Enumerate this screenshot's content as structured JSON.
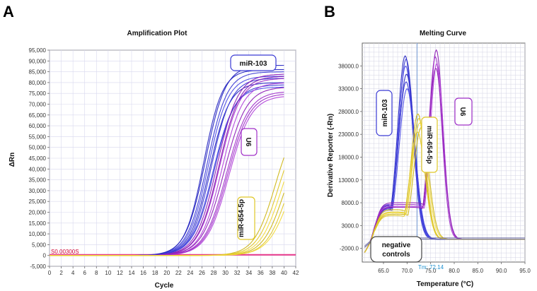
{
  "chart_data": [
    {
      "panel": "A",
      "type": "line",
      "title": "Amplification Plot",
      "xlabel": "Cycle",
      "ylabel": "ΔRn",
      "xlim": [
        0,
        42
      ],
      "ylim": [
        -5000,
        95000
      ],
      "xticks": [
        0,
        2,
        4,
        6,
        8,
        10,
        12,
        14,
        16,
        18,
        20,
        22,
        24,
        26,
        28,
        30,
        32,
        34,
        36,
        38,
        40,
        42
      ],
      "yticks": [
        -5000,
        0,
        5000,
        10000,
        15000,
        20000,
        25000,
        30000,
        35000,
        40000,
        45000,
        50000,
        55000,
        60000,
        65000,
        70000,
        75000,
        80000,
        85000,
        90000,
        95000
      ],
      "ytick_labels": [
        "-5,000",
        "0",
        "5,000",
        "10,000",
        "15,000",
        "20,000",
        "25,000",
        "30,000",
        "35,000",
        "40,000",
        "45,000",
        "50,000",
        "55,000",
        "60,000",
        "65,000",
        "70,000",
        "75,000",
        "80,000",
        "85,000",
        "90,000",
        "95,000"
      ],
      "threshold": {
        "label": "S0.00300S",
        "value": 300
      },
      "grid": true,
      "series": [
        {
          "name": "miR-103",
          "color": "#3a3ad4",
          "model": "sigmoid",
          "curves": [
            {
              "plateau": 88000,
              "midpoint": 26.6,
              "slope": 1.7
            },
            {
              "plateau": 85000,
              "midpoint": 26.9,
              "slope": 1.7
            },
            {
              "plateau": 83000,
              "midpoint": 27.1,
              "slope": 1.7
            },
            {
              "plateau": 80000,
              "midpoint": 27.3,
              "slope": 1.7
            },
            {
              "plateau": 82000,
              "midpoint": 27.6,
              "slope": 1.7
            },
            {
              "plateau": 78000,
              "midpoint": 27.9,
              "slope": 1.8
            },
            {
              "plateau": 86000,
              "midpoint": 26.3,
              "slope": 1.6
            },
            {
              "plateau": 79000,
              "midpoint": 28.1,
              "slope": 1.8
            }
          ]
        },
        {
          "name": "U6",
          "color": "#a030c8",
          "model": "sigmoid",
          "curves": [
            {
              "plateau": 84000,
              "midpoint": 28.6,
              "slope": 1.8
            },
            {
              "plateau": 82000,
              "midpoint": 29.0,
              "slope": 1.8
            },
            {
              "plateau": 80000,
              "midpoint": 29.4,
              "slope": 1.8
            },
            {
              "plateau": 78000,
              "midpoint": 29.8,
              "slope": 1.9
            },
            {
              "plateau": 76000,
              "midpoint": 30.2,
              "slope": 1.9
            },
            {
              "plateau": 74000,
              "midpoint": 30.6,
              "slope": 1.9
            },
            {
              "plateau": 83000,
              "midpoint": 28.9,
              "slope": 1.8
            },
            {
              "plateau": 75000,
              "midpoint": 30.4,
              "slope": 1.9
            }
          ]
        },
        {
          "name": "miR-654-5p",
          "color": "#e0c828",
          "model": "sigmoid",
          "curves": [
            {
              "plateau": 65000,
              "midpoint": 38.5,
              "slope": 1.8
            },
            {
              "plateau": 62000,
              "midpoint": 39.0,
              "slope": 1.8
            },
            {
              "plateau": 60000,
              "midpoint": 39.5,
              "slope": 1.8
            },
            {
              "plateau": 58000,
              "midpoint": 40.0,
              "slope": 1.8
            },
            {
              "plateau": 56000,
              "midpoint": 40.5,
              "slope": 1.8
            },
            {
              "plateau": 55000,
              "midpoint": 41.0,
              "slope": 1.9
            }
          ]
        }
      ],
      "annotations": [
        "miR-103",
        "U6",
        "miR-654-5p"
      ]
    },
    {
      "panel": "B",
      "type": "line",
      "title": "Melting Curve",
      "xlabel": "Temperature (°C)",
      "ylabel": "Derivative Reporter (-Rn)",
      "xlim": [
        60.5,
        95.0
      ],
      "ylim": [
        -5000,
        43000
      ],
      "xticks": [
        65.0,
        70.0,
        75.0,
        80.0,
        85.0,
        90.0,
        95.0
      ],
      "xtick_labels": [
        "65.0",
        "70.0",
        "75.0",
        "80.0",
        "85.0",
        "90.0",
        "95.0"
      ],
      "yticks": [
        -2000,
        3000,
        8000,
        13000,
        18000,
        23000,
        28000,
        33000,
        38000
      ],
      "ytick_labels": [
        "-2000.0",
        "3000.0",
        "8000.0",
        "13000.0",
        "18000.0",
        "23000.0",
        "28000.0",
        "33000.0",
        "38000.0"
      ],
      "tm_label": "Tm: 72.14",
      "tm_value": 72.14,
      "grid": true,
      "series": [
        {
          "name": "miR-103",
          "color": "#3a3ad4",
          "model": "gaussian",
          "curves": [
            {
              "peak": 40200,
              "center": 69.6,
              "sigma": 1.6,
              "shoulder": 7500
            },
            {
              "peak": 39500,
              "center": 69.8,
              "sigma": 1.6,
              "shoulder": 7200
            },
            {
              "peak": 38000,
              "center": 69.7,
              "sigma": 1.6,
              "shoulder": 7800
            },
            {
              "peak": 36200,
              "center": 69.9,
              "sigma": 1.7,
              "shoulder": 7000
            },
            {
              "peak": 34500,
              "center": 69.8,
              "sigma": 1.7,
              "shoulder": 6800
            },
            {
              "peak": 33000,
              "center": 70.0,
              "sigma": 1.7,
              "shoulder": 6500
            }
          ]
        },
        {
          "name": "U6",
          "color": "#a030c8",
          "model": "gaussian",
          "curves": [
            {
              "peak": 41500,
              "center": 76.2,
              "sigma": 1.4,
              "shoulder": 8000
            },
            {
              "peak": 40000,
              "center": 76.0,
              "sigma": 1.4,
              "shoulder": 7600
            },
            {
              "peak": 38500,
              "center": 76.3,
              "sigma": 1.4,
              "shoulder": 7200
            },
            {
              "peak": 37500,
              "center": 76.1,
              "sigma": 1.5,
              "shoulder": 7000
            }
          ]
        },
        {
          "name": "miR-654-5p",
          "color": "#e0c828",
          "model": "gaussian",
          "curves": [
            {
              "peak": 27500,
              "center": 72.3,
              "sigma": 1.5,
              "shoulder": 6500
            },
            {
              "peak": 26500,
              "center": 72.5,
              "sigma": 1.5,
              "shoulder": 6000
            },
            {
              "peak": 25500,
              "center": 72.7,
              "sigma": 1.6,
              "shoulder": 5800
            },
            {
              "peak": 24500,
              "center": 73.0,
              "sigma": 1.6,
              "shoulder": 5500
            },
            {
              "peak": 23500,
              "center": 72.2,
              "sigma": 1.6,
              "shoulder": 5200
            }
          ]
        },
        {
          "name": "negative controls",
          "color": "#7777aa",
          "model": "baseline",
          "curves": [
            {
              "level": 0
            },
            {
              "level": 300
            }
          ]
        }
      ],
      "annotations": [
        "miR-103",
        "U6",
        "miR-654-5p",
        "negative controls"
      ]
    }
  ],
  "panels": {
    "a": "A",
    "b": "B"
  },
  "labels": {
    "a_mir103": "miR-103",
    "a_u6": "U6",
    "a_mir654": "miR-654-5p",
    "b_mir103": "miR-103",
    "b_u6": "U6",
    "b_mir654": "miR-654-5p",
    "b_neg_line1": "negative",
    "b_neg_line2": "controls"
  },
  "colors": {
    "mir103": "#3a3ad4",
    "u6": "#a030c8",
    "mir654": "#e0c828",
    "threshold": "#e8388a",
    "grid": "#d8d8ee",
    "grid_b": "#d4d4e4"
  }
}
